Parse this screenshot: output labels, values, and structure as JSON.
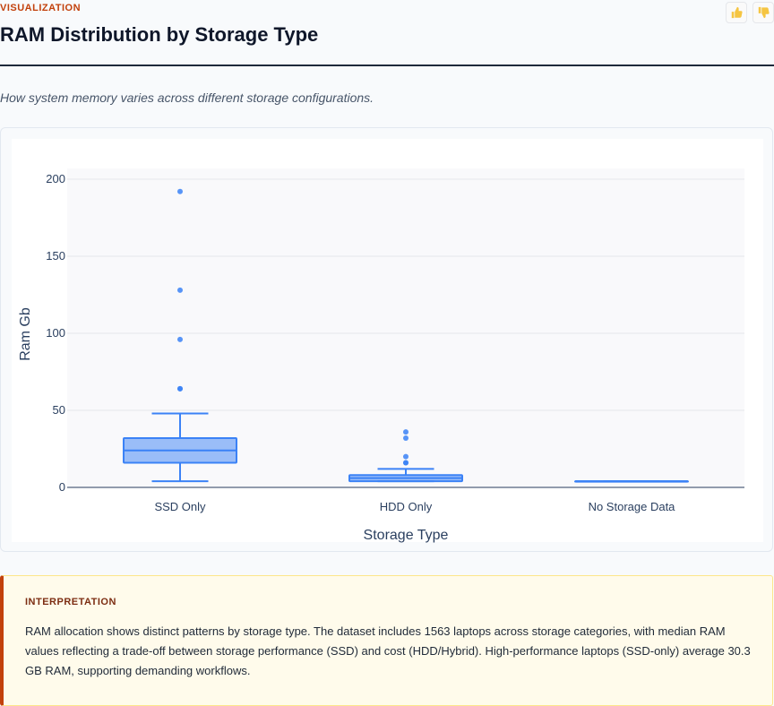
{
  "header": {
    "section_label": "VISUALIZATION",
    "title": "RAM Distribution by Storage Type",
    "subtitle": "How system memory varies across different storage configurations.",
    "feedback": {
      "thumbs_up_icon": "thumbs-up-icon",
      "thumbs_down_icon": "thumbs-down-icon"
    }
  },
  "chart_data": {
    "type": "box",
    "title": "",
    "xlabel": "Storage Type",
    "ylabel": "Ram Gb",
    "ylim": [
      0,
      200
    ],
    "yticks": [
      0,
      50,
      100,
      150,
      200
    ],
    "grid": true,
    "legend": "none",
    "color": "#3b82f6",
    "categories": [
      "SSD Only",
      "HDD Only",
      "No Storage Data"
    ],
    "boxes": [
      {
        "category": "SSD Only",
        "lowerfence": 4,
        "q1": 16,
        "median": 24,
        "q3": 32,
        "upperfence": 48,
        "outliers": [
          64,
          64,
          96,
          128,
          192
        ]
      },
      {
        "category": "HDD Only",
        "lowerfence": 4,
        "q1": 4,
        "median": 6,
        "q3": 8,
        "upperfence": 12,
        "outliers": [
          16,
          16,
          20,
          32,
          36
        ]
      },
      {
        "category": "No Storage Data",
        "lowerfence": 4,
        "q1": 4,
        "median": 4,
        "q3": 4,
        "upperfence": 4,
        "outliers": []
      }
    ]
  },
  "interpretation": {
    "label": "INTERPRETATION",
    "text": "RAM allocation shows distinct patterns by storage type. The dataset includes 1563 laptops across storage categories, with median RAM values reflecting a trade-off between storage performance (SSD) and cost (HDD/Hybrid). High-performance laptops (SSD-only) average 30.3 GB RAM, supporting demanding workflows."
  }
}
